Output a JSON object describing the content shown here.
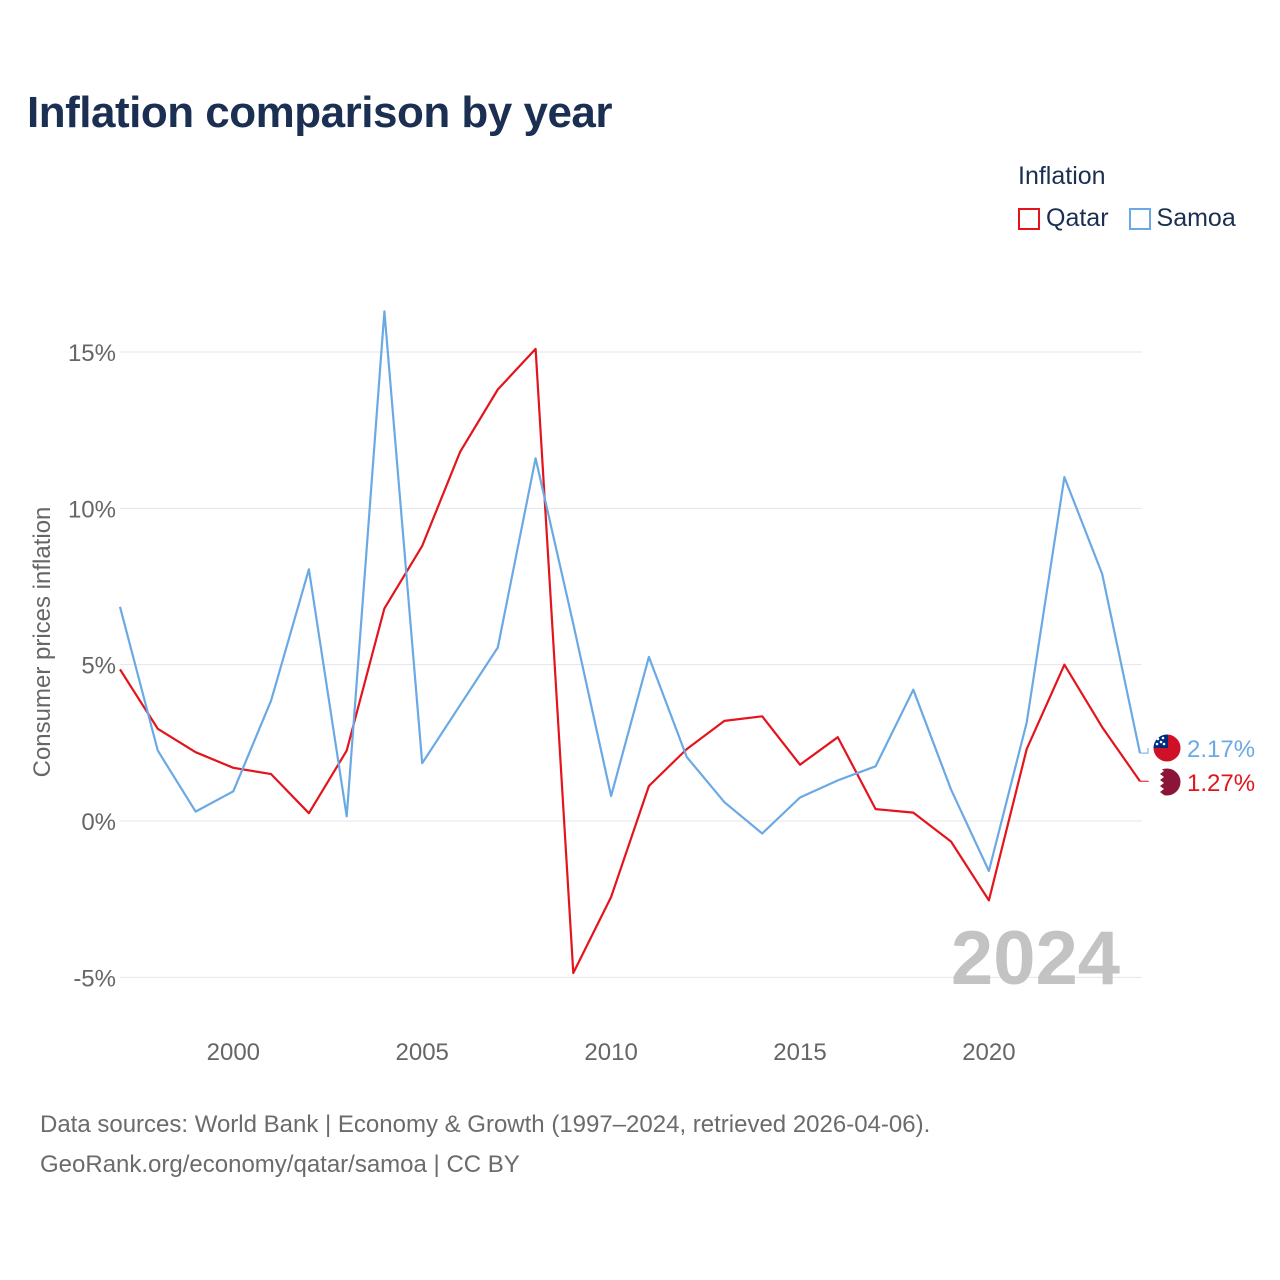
{
  "header": {
    "title": "Inflation comparison by year"
  },
  "legend": {
    "title": "Inflation",
    "items": [
      {
        "label": "Qatar",
        "color": "#e3141c"
      },
      {
        "label": "Samoa",
        "color": "#6aa9e4"
      }
    ]
  },
  "chart_data": {
    "type": "line",
    "title": "Inflation comparison by year",
    "xlabel": "",
    "ylabel": "Consumer prices inflation",
    "x": [
      1997,
      1998,
      1999,
      2000,
      2001,
      2002,
      2003,
      2004,
      2005,
      2006,
      2007,
      2008,
      2009,
      2010,
      2011,
      2012,
      2013,
      2014,
      2015,
      2016,
      2017,
      2018,
      2019,
      2020,
      2021,
      2022,
      2023,
      2024
    ],
    "xlim": [
      1997,
      2024
    ],
    "ylim": [
      -5.5,
      16.5
    ],
    "x_ticks": [
      2000,
      2005,
      2010,
      2015,
      2020
    ],
    "x_tick_labels": [
      "2000",
      "2005",
      "2010",
      "2015",
      "2020"
    ],
    "y_ticks": [
      -5,
      0,
      5,
      10,
      15
    ],
    "y_tick_labels": [
      "-5%",
      "0%",
      "5%",
      "10%",
      "15%"
    ],
    "grid": true,
    "year_watermark": "2024",
    "series": [
      {
        "name": "Qatar",
        "color": "#e3141c",
        "flag": "qatar-flag-icon",
        "end_label": "1.27%",
        "values": [
          4.85,
          2.95,
          2.2,
          1.7,
          1.5,
          0.25,
          2.25,
          6.8,
          8.8,
          11.8,
          13.8,
          15.1,
          -4.86,
          -2.43,
          1.12,
          2.3,
          3.2,
          3.35,
          1.8,
          2.68,
          0.38,
          0.27,
          -0.66,
          -2.54,
          2.3,
          5.0,
          3.0,
          1.27
        ]
      },
      {
        "name": "Samoa",
        "color": "#6aa9e4",
        "flag": "samoa-flag-icon",
        "end_label": "2.17%",
        "values": [
          6.85,
          2.25,
          0.3,
          0.95,
          3.85,
          8.05,
          0.15,
          16.3,
          1.85,
          3.7,
          5.55,
          11.6,
          6.3,
          0.8,
          5.25,
          2.05,
          0.6,
          -0.4,
          0.75,
          1.3,
          1.75,
          4.2,
          1.0,
          -1.6,
          3.15,
          11.0,
          7.9,
          2.17
        ]
      }
    ]
  },
  "footer": {
    "sources": "Data sources: World Bank | Economy & Growth (1997–2024, retrieved 2026-04-06).",
    "credit": "GeoRank.org/economy/qatar/samoa | CC BY"
  }
}
